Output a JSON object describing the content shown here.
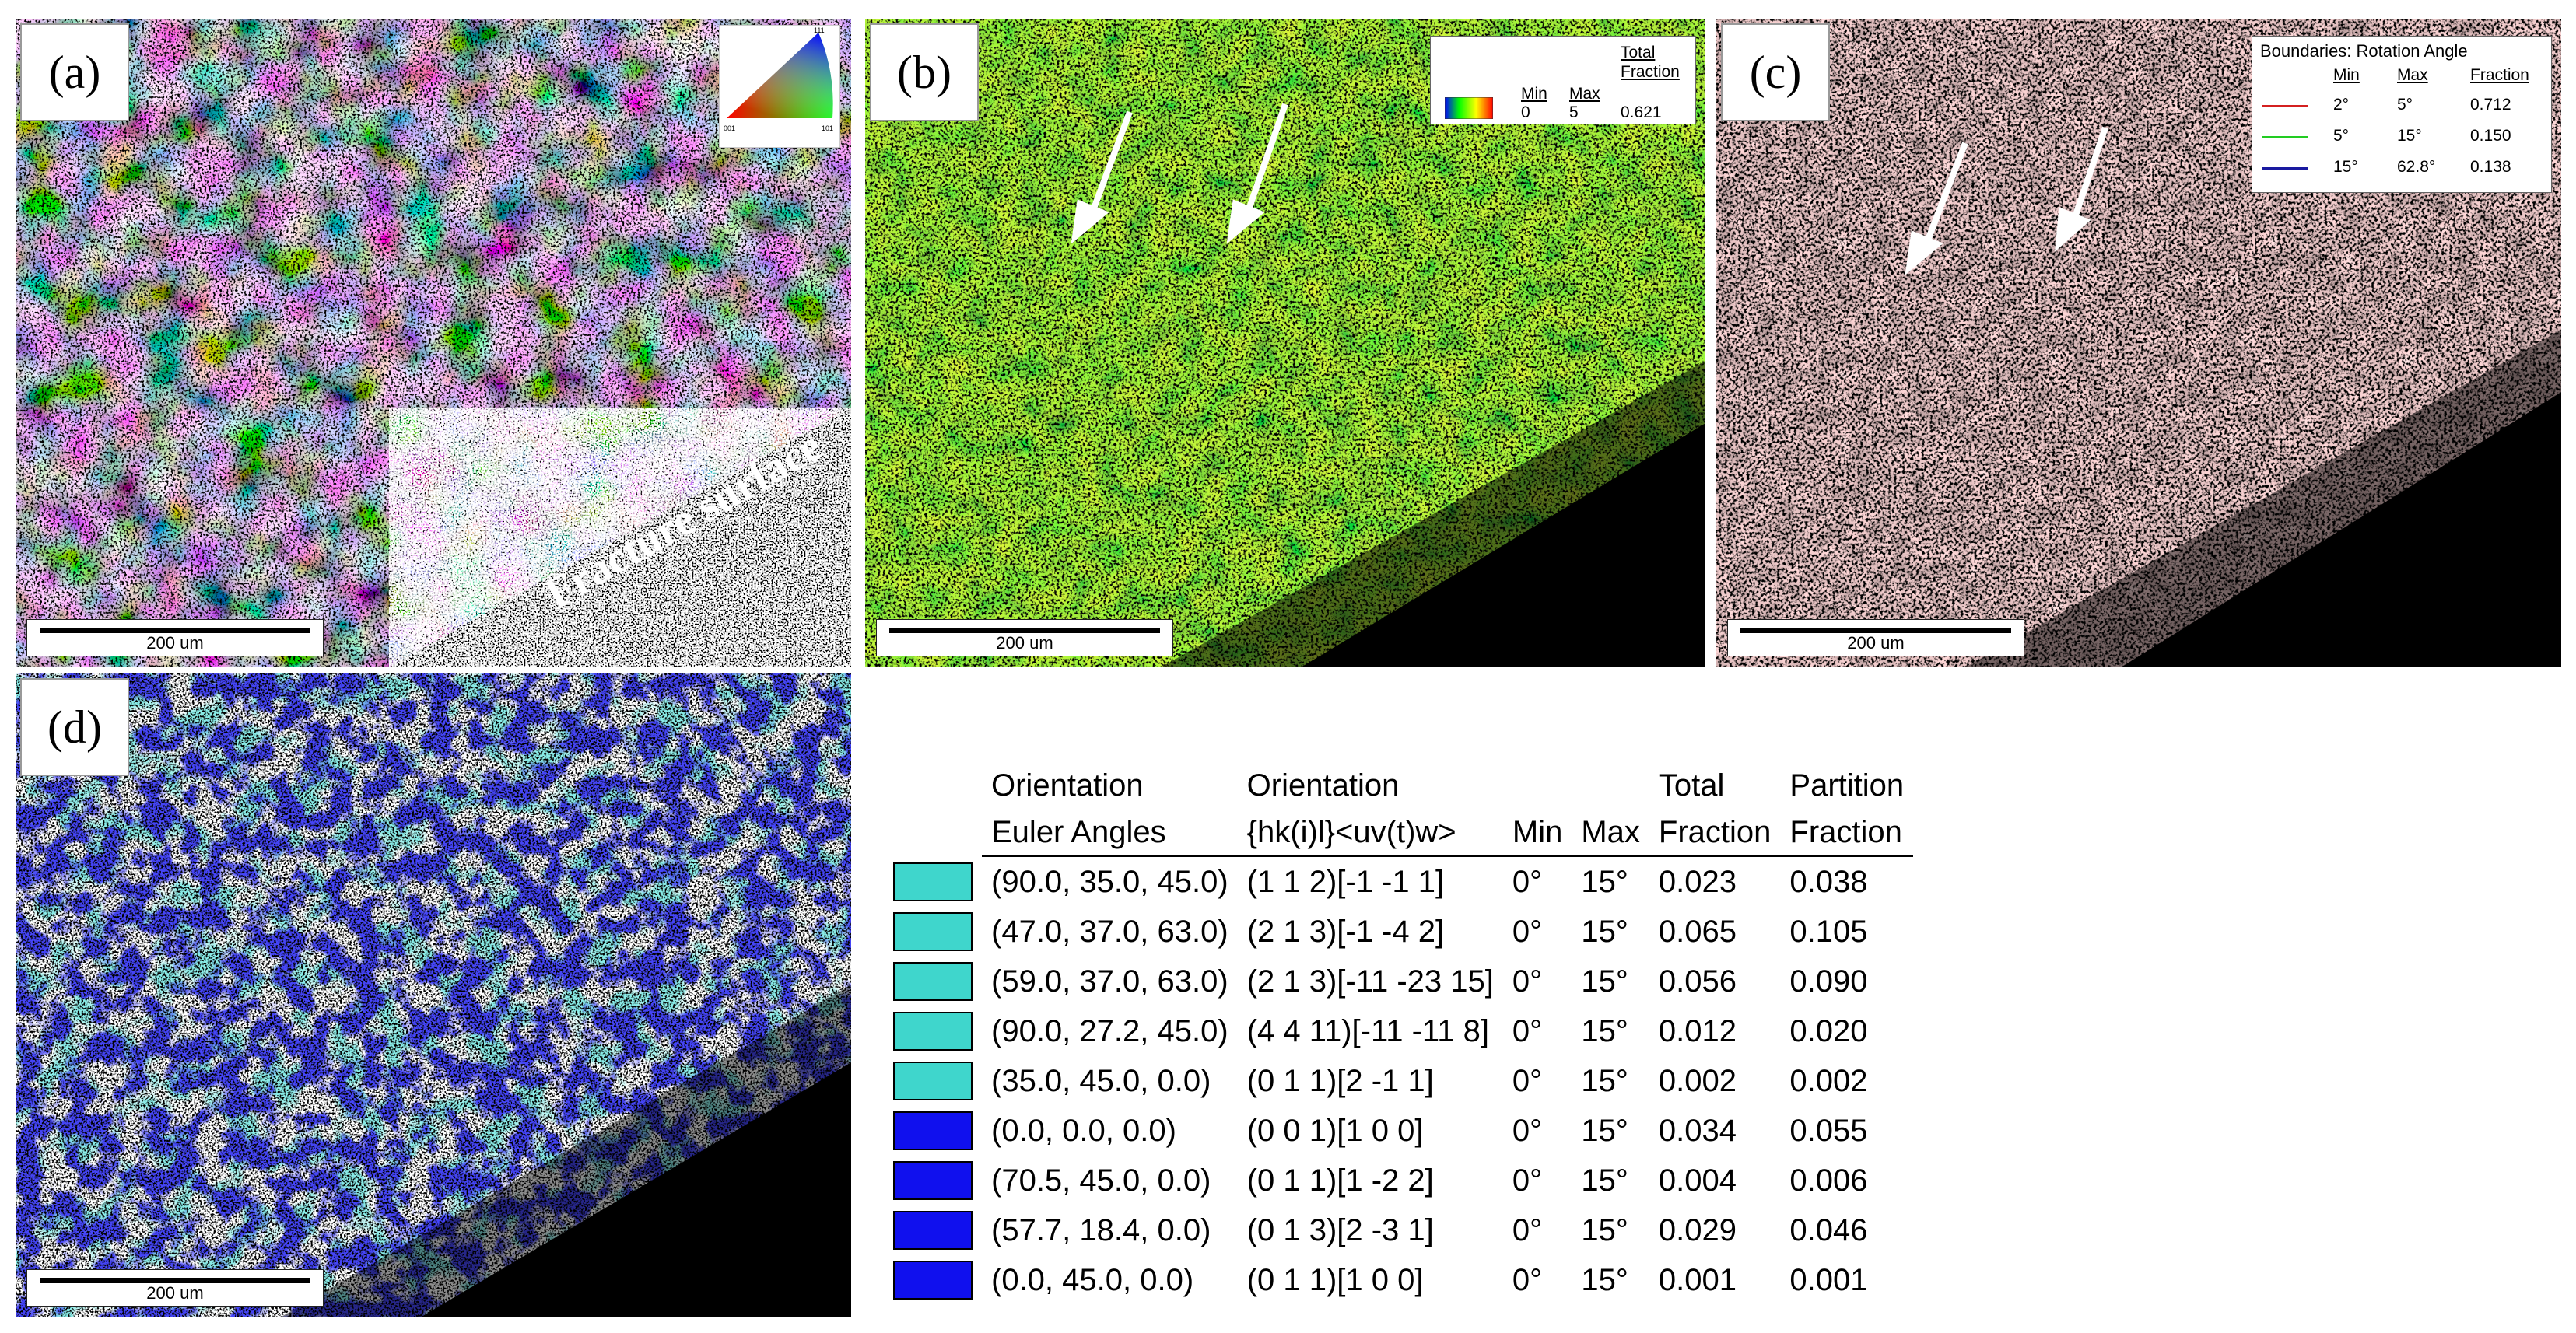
{
  "figure": {
    "panels": [
      {
        "label": "(a)",
        "scale_bar": "200 um",
        "annotation": "Fracture surface"
      },
      {
        "label": "(b)",
        "scale_bar": "200 um"
      },
      {
        "label": "(c)",
        "scale_bar": "200 um"
      },
      {
        "label": "(d)",
        "scale_bar": "200 um"
      }
    ],
    "ipf_key": {
      "corner_top": "111",
      "corner_left": "001",
      "corner_right": "101"
    },
    "kam_legend": {
      "headers": [
        "Min",
        "Max",
        "Total Fraction"
      ],
      "values": [
        "0",
        "5",
        "0.621"
      ]
    },
    "boundary_legend": {
      "title": "Boundaries: Rotation Angle",
      "headers": [
        "Min",
        "Max",
        "Fraction"
      ],
      "rows": [
        {
          "color": "#d42020",
          "min": "2°",
          "max": "5°",
          "fraction": "0.712"
        },
        {
          "color": "#22cc22",
          "min": "5°",
          "max": "15°",
          "fraction": "0.150"
        },
        {
          "color": "#1a1aa0",
          "min": "15°",
          "max": "62.8°",
          "fraction": "0.138"
        }
      ]
    },
    "orientation_table": {
      "header_row1": [
        "Orientation",
        "Orientation",
        "",
        "",
        "Total",
        "Partition"
      ],
      "header_row2": [
        "Euler Angles",
        "{hk(i)l}<uv(t)w>",
        "Min",
        "Max",
        "Fraction",
        "Fraction"
      ],
      "rows": [
        {
          "color": "#3fd6cc",
          "euler": "(90.0, 35.0, 45.0)",
          "hkl": "(1 1 2)[-1 -1 1]",
          "min": "0°",
          "max": "15°",
          "total": "0.023",
          "partition": "0.038"
        },
        {
          "color": "#3fd6cc",
          "euler": "(47.0, 37.0, 63.0)",
          "hkl": "(2 1 3)[-1 -4 2]",
          "min": "0°",
          "max": "15°",
          "total": "0.065",
          "partition": "0.105"
        },
        {
          "color": "#3fd6cc",
          "euler": "(59.0, 37.0, 63.0)",
          "hkl": "(2 1 3)[-11 -23 15]",
          "min": "0°",
          "max": "15°",
          "total": "0.056",
          "partition": "0.090"
        },
        {
          "color": "#3fd6cc",
          "euler": "(90.0, 27.2, 45.0)",
          "hkl": "(4 4 11)[-11 -11 8]",
          "min": "0°",
          "max": "15°",
          "total": "0.012",
          "partition": "0.020"
        },
        {
          "color": "#3fd6cc",
          "euler": "(35.0, 45.0, 0.0)",
          "hkl": "(0 1 1)[2 -1 1]",
          "min": "0°",
          "max": "15°",
          "total": "0.002",
          "partition": "0.002"
        },
        {
          "color": "#1010ee",
          "euler": "(0.0, 0.0, 0.0)",
          "hkl": "(0 0 1)[1 0 0]",
          "min": "0°",
          "max": "15°",
          "total": "0.034",
          "partition": "0.055"
        },
        {
          "color": "#1010ee",
          "euler": "(70.5, 45.0, 0.0)",
          "hkl": "(0 1 1)[1 -2 2]",
          "min": "0°",
          "max": "15°",
          "total": "0.004",
          "partition": "0.006"
        },
        {
          "color": "#1010ee",
          "euler": "(57.7, 18.4, 0.0)",
          "hkl": "(0 1 3)[2 -3 1]",
          "min": "0°",
          "max": "15°",
          "total": "0.029",
          "partition": "0.046"
        },
        {
          "color": "#1010ee",
          "euler": "(0.0, 45.0, 0.0)",
          "hkl": "(0 1 1)[1 0 0]",
          "min": "0°",
          "max": "15°",
          "total": "0.001",
          "partition": "0.001"
        }
      ]
    }
  }
}
